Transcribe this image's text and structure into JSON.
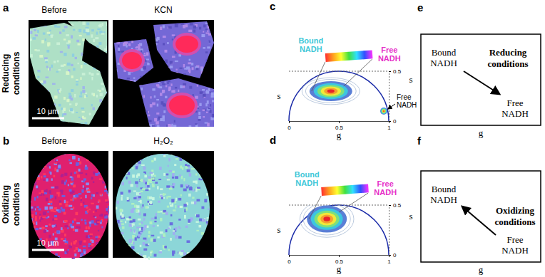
{
  "figure": {
    "a": {
      "label": "a",
      "row_label": [
        "Reducing",
        "conditions"
      ],
      "image_titles": [
        "Before",
        "KCN"
      ],
      "scale_bar": "10 μm"
    },
    "b": {
      "label": "b",
      "row_label": [
        "Oxidizing",
        "conditions"
      ],
      "image_titles": [
        "Before",
        "H₂O₂"
      ],
      "scale_bar": "10 μm"
    },
    "e": {
      "label": "e",
      "x_label": "g",
      "y_label": "s",
      "upper": [
        "Bound",
        "NADH"
      ],
      "lower": [
        "Free",
        "NADH"
      ],
      "condition": [
        "Reducing",
        "conditions"
      ]
    },
    "f": {
      "label": "f",
      "x_label": "g",
      "y_label": "s",
      "upper": [
        "Bound",
        "NADH"
      ],
      "lower": [
        "Free",
        "NADH"
      ],
      "condition": [
        "Oxidizing",
        "conditions"
      ]
    }
  },
  "chart_data": [
    {
      "type": "scatter",
      "title": "c",
      "x_label": "g",
      "y_label": "s",
      "x": [
        0.42,
        0.95
      ],
      "values": [
        0.3,
        0.1
      ],
      "xlim": [
        0,
        1
      ],
      "ylim": [
        0,
        0.5
      ],
      "xticks": [
        0,
        0.5,
        1
      ],
      "yticks": [
        0,
        0.5
      ],
      "annotations": [
        {
          "text": [
            "Bound",
            "NADH"
          ],
          "color": "#3fc8d8"
        },
        {
          "text": [
            "Free",
            "NADH"
          ],
          "color": "#e62fc8"
        },
        {
          "text": [
            "Free",
            "NADH"
          ],
          "color": "#000000"
        }
      ]
    },
    {
      "type": "scatter",
      "title": "d",
      "x_label": "g",
      "y_label": "s",
      "x": [
        0.38
      ],
      "values": [
        0.36
      ],
      "xlim": [
        0,
        1
      ],
      "ylim": [
        0,
        0.5
      ],
      "xticks": [
        0,
        0.5,
        1
      ],
      "yticks": [
        0,
        0.5
      ],
      "annotations": [
        {
          "text": [
            "Bound",
            "NADH"
          ],
          "color": "#3fc8d8"
        },
        {
          "text": [
            "Free",
            "NADH"
          ],
          "color": "#e62fc8"
        }
      ]
    }
  ]
}
